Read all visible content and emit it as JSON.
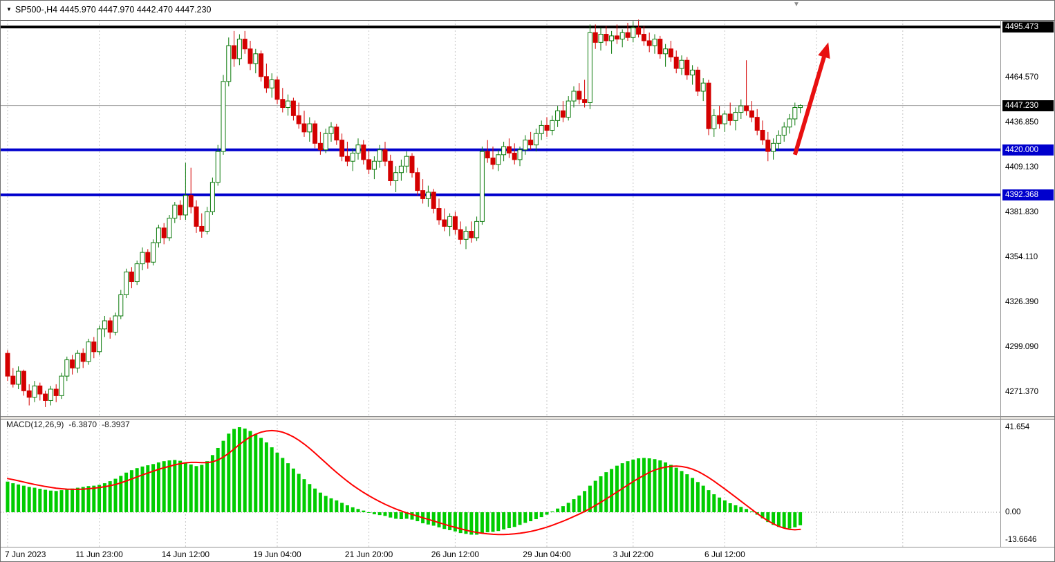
{
  "header": {
    "symbol_info": "SP500-,H4 4445.970 4447.970 4442.470 4447.230"
  },
  "icons": {
    "symbol_dropdown": "▼",
    "chart_shift_marker": "▼"
  },
  "style": {
    "up_border": "#0b7a0b",
    "up_fill": "#ffffff",
    "down_color": "#d40000",
    "grid_color": "#c6c6c6",
    "current_price_line": "#9b9b9b",
    "level_blue": "#0000cd",
    "level_black": "#000000",
    "arrow_color": "#e81010",
    "macd_histogram": "#00cc00",
    "macd_signal": "#ff0000"
  },
  "chart_data": {
    "type": "candlestick+macd",
    "symbol": "SP500-",
    "timeframe": "H4",
    "ohlc_display": {
      "open": "4445.970",
      "high": "4447.970",
      "low": "4442.470",
      "close": "4447.230"
    },
    "current_price": {
      "value": 4447.23,
      "label": "4447.230"
    },
    "price_axis": {
      "ticks": [
        {
          "label": "4464.570",
          "price": 4464.57
        },
        {
          "label": "4436.850",
          "price": 4436.85
        },
        {
          "label": "4409.130",
          "price": 4409.13
        },
        {
          "label": "4381.830",
          "price": 4381.83
        },
        {
          "label": "4354.110",
          "price": 4354.11
        },
        {
          "label": "4326.390",
          "price": 4326.39
        },
        {
          "label": "4299.090",
          "price": 4299.09
        },
        {
          "label": "4271.370",
          "price": 4271.37
        }
      ],
      "tags": [
        {
          "label": "4495.473",
          "price": 4495.473,
          "bg": "#000000"
        },
        {
          "label": "4447.230",
          "price": 4447.23,
          "bg": "#000000"
        },
        {
          "label": "4420.000",
          "price": 4420.0,
          "bg": "#0000cd"
        },
        {
          "label": "4392.368",
          "price": 4392.368,
          "bg": "#0000cd"
        }
      ]
    },
    "levels": [
      {
        "price": 4495.473,
        "color": "#000000",
        "width": 4
      },
      {
        "price": 4420.0,
        "color": "#0000cd",
        "width": 4
      },
      {
        "price": 4392.368,
        "color": "#0000cd",
        "width": 4
      }
    ],
    "annotations": [
      {
        "type": "arrow",
        "color": "#e81010",
        "from": {
          "index": 146,
          "price": 4417
        },
        "to": {
          "index": 152.2,
          "price": 4486
        }
      }
    ],
    "time_axis": {
      "labels": [
        {
          "text": "7 Jun 2023",
          "index": 0
        },
        {
          "text": "11 Jun 23:00",
          "index": 17
        },
        {
          "text": "14 Jun 12:00",
          "index": 33
        },
        {
          "text": "19 Jun 04:00",
          "index": 50
        },
        {
          "text": "21 Jun 20:00",
          "index": 67
        },
        {
          "text": "26 Jun 12:00",
          "index": 83
        },
        {
          "text": "29 Jun 04:00",
          "index": 100
        },
        {
          "text": "3 Jul 22:00",
          "index": 116
        },
        {
          "text": "6 Jul 12:00",
          "index": 133
        }
      ],
      "extra_gridline_indices": [
        150,
        166
      ]
    },
    "candles": [
      [
        4295,
        4297,
        4278,
        4281
      ],
      [
        4281,
        4286,
        4274,
        4276
      ],
      [
        4276,
        4287,
        4273,
        4284
      ],
      [
        4284,
        4285,
        4269,
        4272
      ],
      [
        4272,
        4276,
        4263,
        4268
      ],
      [
        4268,
        4278,
        4265,
        4275
      ],
      [
        4275,
        4277,
        4266,
        4270
      ],
      [
        4270,
        4272,
        4262,
        4266
      ],
      [
        4266,
        4275,
        4263,
        4273
      ],
      [
        4273,
        4276,
        4265,
        4269
      ],
      [
        4269,
        4283,
        4267,
        4281
      ],
      [
        4281,
        4293,
        4278,
        4291
      ],
      [
        4291,
        4294,
        4282,
        4286
      ],
      [
        4286,
        4297,
        4283,
        4295
      ],
      [
        4295,
        4298,
        4286,
        4290
      ],
      [
        4290,
        4304,
        4288,
        4302
      ],
      [
        4302,
        4305,
        4292,
        4296
      ],
      [
        4296,
        4312,
        4294,
        4310
      ],
      [
        4310,
        4318,
        4305,
        4315
      ],
      [
        4315,
        4317,
        4304,
        4308
      ],
      [
        4308,
        4320,
        4306,
        4318
      ],
      [
        4318,
        4334,
        4316,
        4331
      ],
      [
        4331,
        4347,
        4329,
        4345
      ],
      [
        4345,
        4348,
        4335,
        4339
      ],
      [
        4339,
        4352,
        4337,
        4350
      ],
      [
        4350,
        4360,
        4346,
        4357
      ],
      [
        4357,
        4359,
        4347,
        4351
      ],
      [
        4351,
        4365,
        4349,
        4363
      ],
      [
        4363,
        4374,
        4360,
        4372
      ],
      [
        4372,
        4375,
        4362,
        4366
      ],
      [
        4366,
        4380,
        4364,
        4378
      ],
      [
        4378,
        4388,
        4375,
        4386
      ],
      [
        4386,
        4389,
        4377,
        4380
      ],
      [
        4380,
        4412,
        4377,
        4392
      ],
      [
        4392,
        4409,
        4381,
        4385
      ],
      [
        4385,
        4389,
        4369,
        4373
      ],
      [
        4373,
        4381,
        4366,
        4370
      ],
      [
        4370,
        4385,
        4368,
        4382
      ],
      [
        4382,
        4403,
        4380,
        4400
      ],
      [
        4400,
        4423,
        4398,
        4419
      ],
      [
        4419,
        4466,
        4417,
        4462
      ],
      [
        4462,
        4489,
        4459,
        4484
      ],
      [
        4484,
        4493,
        4471,
        4476
      ],
      [
        4476,
        4491,
        4472,
        4488
      ],
      [
        4488,
        4493,
        4479,
        4482
      ],
      [
        4482,
        4487,
        4469,
        4473
      ],
      [
        4473,
        4482,
        4467,
        4479
      ],
      [
        4479,
        4481,
        4462,
        4465
      ],
      [
        4465,
        4473,
        4455,
        4458
      ],
      [
        4458,
        4467,
        4452,
        4463
      ],
      [
        4463,
        4465,
        4448,
        4451
      ],
      [
        4451,
        4458,
        4443,
        4446
      ],
      [
        4446,
        4454,
        4441,
        4450
      ],
      [
        4450,
        4452,
        4438,
        4441
      ],
      [
        4441,
        4449,
        4433,
        4436
      ],
      [
        4436,
        4444,
        4428,
        4431
      ],
      [
        4431,
        4440,
        4425,
        4436
      ],
      [
        4436,
        4438,
        4421,
        4424
      ],
      [
        4424,
        4431,
        4417,
        4420
      ],
      [
        4420,
        4433,
        4418,
        4430
      ],
      [
        4430,
        4437,
        4425,
        4434
      ],
      [
        4434,
        4436,
        4423,
        4426
      ],
      [
        4426,
        4430,
        4413,
        4416
      ],
      [
        4416,
        4425,
        4410,
        4413
      ],
      [
        4413,
        4421,
        4407,
        4418
      ],
      [
        4418,
        4427,
        4414,
        4423
      ],
      [
        4423,
        4426,
        4411,
        4414
      ],
      [
        4414,
        4420,
        4405,
        4408
      ],
      [
        4408,
        4416,
        4402,
        4413
      ],
      [
        4413,
        4423,
        4409,
        4420
      ],
      [
        4420,
        4425,
        4410,
        4413
      ],
      [
        4413,
        4417,
        4398,
        4401
      ],
      [
        4401,
        4410,
        4394,
        4406
      ],
      [
        4406,
        4414,
        4401,
        4410
      ],
      [
        4410,
        4419,
        4406,
        4416
      ],
      [
        4416,
        4418,
        4403,
        4406
      ],
      [
        4406,
        4409,
        4392,
        4395
      ],
      [
        4395,
        4402,
        4387,
        4390
      ],
      [
        4390,
        4398,
        4385,
        4394
      ],
      [
        4394,
        4396,
        4381,
        4384
      ],
      [
        4384,
        4390,
        4374,
        4377
      ],
      [
        4377,
        4384,
        4370,
        4373
      ],
      [
        4373,
        4381,
        4367,
        4379
      ],
      [
        4379,
        4382,
        4368,
        4371
      ],
      [
        4371,
        4376,
        4362,
        4365
      ],
      [
        4365,
        4373,
        4359,
        4370
      ],
      [
        4370,
        4376,
        4363,
        4366
      ],
      [
        4366,
        4379,
        4364,
        4376
      ],
      [
        4376,
        4422,
        4374,
        4419
      ],
      [
        4419,
        4426,
        4412,
        4415
      ],
      [
        4415,
        4422,
        4408,
        4411
      ],
      [
        4411,
        4420,
        4407,
        4417
      ],
      [
        4417,
        4425,
        4413,
        4422
      ],
      [
        4422,
        4427,
        4415,
        4418
      ],
      [
        4418,
        4424,
        4411,
        4414
      ],
      [
        4414,
        4422,
        4410,
        4420
      ],
      [
        4420,
        4429,
        4417,
        4426
      ],
      [
        4426,
        4431,
        4420,
        4423
      ],
      [
        4423,
        4433,
        4419,
        4430
      ],
      [
        4430,
        4438,
        4426,
        4435
      ],
      [
        4435,
        4440,
        4428,
        4432
      ],
      [
        4432,
        4441,
        4429,
        4438
      ],
      [
        4438,
        4447,
        4434,
        4444
      ],
      [
        4444,
        4450,
        4437,
        4440
      ],
      [
        4440,
        4453,
        4438,
        4450
      ],
      [
        4450,
        4459,
        4446,
        4456
      ],
      [
        4456,
        4461,
        4448,
        4451
      ],
      [
        4451,
        4463,
        4446,
        4449
      ],
      [
        4449,
        4497,
        4445,
        4492
      ],
      [
        4492,
        4497,
        4482,
        4486
      ],
      [
        4486,
        4495,
        4481,
        4491
      ],
      [
        4491,
        4496,
        4484,
        4487
      ],
      [
        4487,
        4493,
        4479,
        4490
      ],
      [
        4490,
        4497,
        4485,
        4488
      ],
      [
        4488,
        4494,
        4483,
        4492
      ],
      [
        4492,
        4498,
        4487,
        4489
      ],
      [
        4489,
        4499,
        4486,
        4495
      ],
      [
        4495,
        4500,
        4489,
        4491
      ],
      [
        4491,
        4496,
        4484,
        4487
      ],
      [
        4487,
        4492,
        4480,
        4484
      ],
      [
        4484,
        4491,
        4479,
        4488
      ],
      [
        4488,
        4490,
        4476,
        4479
      ],
      [
        4479,
        4485,
        4471,
        4482
      ],
      [
        4482,
        4487,
        4474,
        4477
      ],
      [
        4477,
        4481,
        4467,
        4470
      ],
      [
        4470,
        4478,
        4466,
        4475
      ],
      [
        4475,
        4477,
        4463,
        4466
      ],
      [
        4466,
        4472,
        4460,
        4469
      ],
      [
        4469,
        4471,
        4453,
        4456
      ],
      [
        4456,
        4464,
        4450,
        4461
      ],
      [
        4461,
        4463,
        4429,
        4433
      ],
      [
        4433,
        4445,
        4428,
        4441
      ],
      [
        4441,
        4447,
        4433,
        4436
      ],
      [
        4436,
        4444,
        4431,
        4442
      ],
      [
        4442,
        4449,
        4435,
        4438
      ],
      [
        4438,
        4446,
        4432,
        4443
      ],
      [
        4443,
        4451,
        4439,
        4447
      ],
      [
        4447,
        4475,
        4441,
        4444
      ],
      [
        4444,
        4450,
        4437,
        4440
      ],
      [
        4440,
        4445,
        4429,
        4432
      ],
      [
        4432,
        4438,
        4423,
        4426
      ],
      [
        4426,
        4431,
        4413,
        4419
      ],
      [
        4419,
        4427,
        4414,
        4424
      ],
      [
        4424,
        4432,
        4420,
        4429
      ],
      [
        4429,
        4437,
        4425,
        4434
      ],
      [
        4434,
        4442,
        4430,
        4439
      ],
      [
        4439,
        4449,
        4435,
        4446
      ],
      [
        4445.97,
        4447.97,
        4442.47,
        4447.23
      ]
    ],
    "macd": {
      "title": "MACD(12,26,9)",
      "main_value": "-6.3870",
      "signal_value": "-8.3937",
      "axis_labels": [
        {
          "text": "41.654",
          "value": 41.654
        },
        {
          "text": "0.00",
          "value": 0
        },
        {
          "text": "-13.6646",
          "value": -13.6646
        }
      ],
      "histogram": [
        15.0,
        14.2,
        13.6,
        13.0,
        12.4,
        12.0,
        11.5,
        11.0,
        10.6,
        10.4,
        10.8,
        11.2,
        11.6,
        12.0,
        12.4,
        12.8,
        13.0,
        13.4,
        14.2,
        15.2,
        16.4,
        17.8,
        19.4,
        20.6,
        21.6,
        22.4,
        23.0,
        23.6,
        24.4,
        25.0,
        25.4,
        25.6,
        25.2,
        24.4,
        23.4,
        22.6,
        23.2,
        25.0,
        28.0,
        31.5,
        35.0,
        38.5,
        40.8,
        41.654,
        41.0,
        39.8,
        38.2,
        36.4,
        34.2,
        31.8,
        29.2,
        26.6,
        24.0,
        21.4,
        18.8,
        16.2,
        13.8,
        11.6,
        9.6,
        8.0,
        6.8,
        5.8,
        4.6,
        3.4,
        2.4,
        1.6,
        0.8,
        -0.2,
        -1.0,
        -1.4,
        -1.8,
        -2.6,
        -3.2,
        -3.4,
        -3.2,
        -3.6,
        -4.4,
        -5.4,
        -6.0,
        -6.6,
        -7.4,
        -8.2,
        -8.8,
        -9.4,
        -10.2,
        -10.6,
        -11.0,
        -11.0,
        -10.2,
        -9.8,
        -9.6,
        -9.2,
        -8.4,
        -7.8,
        -7.2,
        -6.2,
        -5.2,
        -4.4,
        -3.4,
        -2.4,
        -1.2,
        0.4,
        1.8,
        3.0,
        4.6,
        6.4,
        8.2,
        10.4,
        13.0,
        15.4,
        17.6,
        19.6,
        21.2,
        22.8,
        24.0,
        25.0,
        25.8,
        26.4,
        26.6,
        26.4,
        26.0,
        25.4,
        24.4,
        23.2,
        21.8,
        20.2,
        18.6,
        16.8,
        14.8,
        13.0,
        10.8,
        8.8,
        7.2,
        5.8,
        4.4,
        3.4,
        2.6,
        1.6,
        0.4,
        -1.2,
        -3.0,
        -4.8,
        -6.2,
        -7.2,
        -7.8,
        -8.0,
        -7.4,
        -6.387
      ],
      "signal": [
        16.5,
        16.0,
        15.4,
        14.8,
        14.2,
        13.6,
        13.1,
        12.6,
        12.2,
        11.8,
        11.5,
        11.3,
        11.2,
        11.2,
        11.3,
        11.5,
        11.8,
        12.1,
        12.5,
        13.0,
        13.6,
        14.4,
        15.3,
        16.3,
        17.3,
        18.3,
        19.2,
        20.1,
        21.0,
        21.8,
        22.5,
        23.2,
        23.8,
        24.2,
        24.4,
        24.4,
        24.3,
        24.3,
        24.7,
        25.6,
        27.0,
        28.9,
        31.0,
        33.2,
        35.2,
        36.9,
        38.2,
        39.2,
        39.8,
        40.0,
        39.8,
        39.2,
        38.2,
        36.9,
        35.3,
        33.4,
        31.3,
        29.0,
        26.6,
        24.2,
        21.8,
        19.5,
        17.3,
        15.2,
        13.2,
        11.4,
        9.7,
        8.1,
        6.6,
        5.2,
        3.9,
        2.7,
        1.6,
        0.6,
        -0.3,
        -1.1,
        -1.9,
        -2.7,
        -3.5,
        -4.3,
        -5.1,
        -5.9,
        -6.7,
        -7.4,
        -8.1,
        -8.8,
        -9.4,
        -9.9,
        -10.3,
        -10.6,
        -10.8,
        -10.9,
        -10.9,
        -10.8,
        -10.6,
        -10.3,
        -9.9,
        -9.4,
        -8.8,
        -8.1,
        -7.3,
        -6.4,
        -5.4,
        -4.4,
        -3.3,
        -2.1,
        -0.9,
        0.4,
        1.8,
        3.3,
        4.9,
        6.5,
        8.2,
        9.9,
        11.6,
        13.3,
        15.0,
        16.6,
        18.1,
        19.5,
        20.7,
        21.5,
        22.1,
        22.5,
        22.6,
        22.4,
        21.9,
        21.1,
        20.0,
        18.6,
        17.0,
        15.2,
        13.3,
        11.4,
        9.4,
        7.4,
        5.4,
        3.4,
        1.4,
        -0.6,
        -2.5,
        -4.2,
        -5.7,
        -6.9,
        -7.8,
        -8.4,
        -8.6,
        -8.3937
      ]
    }
  }
}
